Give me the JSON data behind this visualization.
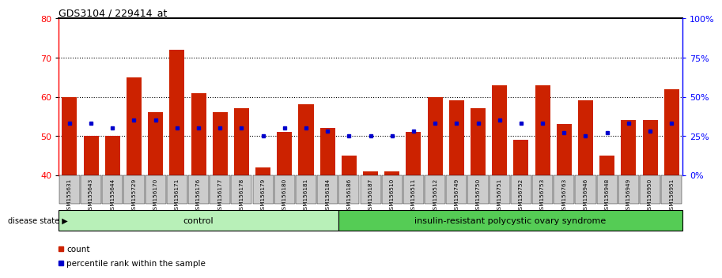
{
  "title": "GDS3104 / 229414_at",
  "samples": [
    "GSM155631",
    "GSM155643",
    "GSM155644",
    "GSM155729",
    "GSM156170",
    "GSM156171",
    "GSM156176",
    "GSM156177",
    "GSM156178",
    "GSM156179",
    "GSM156180",
    "GSM156181",
    "GSM156184",
    "GSM156186",
    "GSM156187",
    "GSM156510",
    "GSM156511",
    "GSM156512",
    "GSM156749",
    "GSM156750",
    "GSM156751",
    "GSM156752",
    "GSM156753",
    "GSM156763",
    "GSM156946",
    "GSM156948",
    "GSM156949",
    "GSM156950",
    "GSM156951"
  ],
  "count_values": [
    60,
    50,
    50,
    65,
    56,
    72,
    61,
    56,
    57,
    42,
    51,
    58,
    52,
    45,
    41,
    41,
    51,
    60,
    59,
    57,
    63,
    49,
    63,
    53,
    59,
    45,
    54,
    54,
    62
  ],
  "percentile_pct": [
    33,
    33,
    30,
    35,
    35,
    30,
    30,
    30,
    30,
    25,
    30,
    30,
    28,
    25,
    25,
    25,
    28,
    33,
    33,
    33,
    35,
    33,
    33,
    27,
    25,
    27,
    33,
    28,
    33
  ],
  "control_count": 13,
  "group_labels": [
    "control",
    "insulin-resistant polycystic ovary syndrome"
  ],
  "ylim_left": [
    40,
    80
  ],
  "ylim_right": [
    0,
    100
  ],
  "yticks_left": [
    40,
    50,
    60,
    70,
    80
  ],
  "yticks_right": [
    0,
    25,
    50,
    75,
    100
  ],
  "yticklabels_right": [
    "0%",
    "25%",
    "50%",
    "75%",
    "100%"
  ],
  "bar_color": "#cc2200",
  "percentile_color": "#0000cc",
  "tick_bg": "#cccccc",
  "disease_state_label": "disease state",
  "legend_count": "count",
  "legend_percentile": "percentile rank within the sample"
}
